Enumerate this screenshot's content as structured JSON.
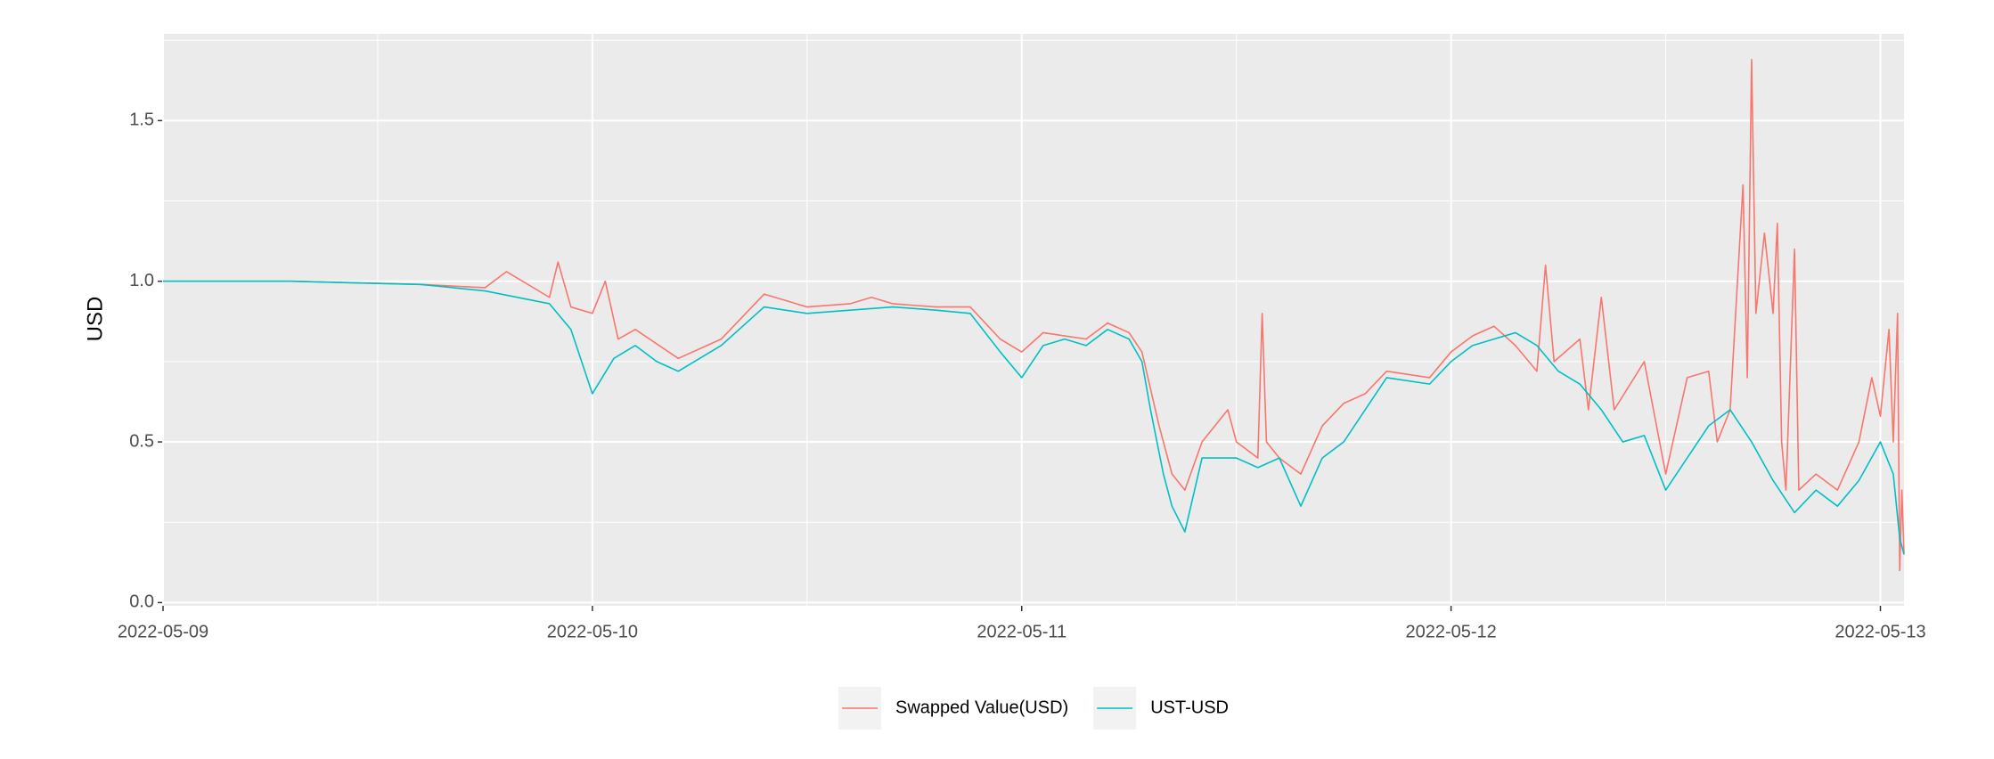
{
  "chart_data": {
    "type": "line",
    "y_label": "USD",
    "xlim": [
      0,
      4.055
    ],
    "xticks": [
      {
        "value": 0,
        "label": "2022-05-09"
      },
      {
        "value": 1,
        "label": "2022-05-10"
      },
      {
        "value": 2,
        "label": "2022-05-11"
      },
      {
        "value": 3,
        "label": "2022-05-12"
      },
      {
        "value": 4,
        "label": "2022-05-13"
      }
    ],
    "ylim": [
      -0.01,
      1.77
    ],
    "yticks": [
      {
        "value": 0,
        "label": "0.0"
      },
      0.5,
      {
        "value": 1,
        "label": "1.0"
      },
      1.5
    ],
    "grid": true,
    "legend": "bottom",
    "series": [
      {
        "name": "Swapped Value(USD)",
        "color": "#F8766D",
        "x": [
          0,
          0.3,
          0.6,
          0.75,
          0.8,
          0.9,
          0.92,
          0.95,
          1.0,
          1.03,
          1.06,
          1.1,
          1.2,
          1.3,
          1.4,
          1.5,
          1.6,
          1.65,
          1.7,
          1.8,
          1.88,
          1.95,
          2.0,
          2.05,
          2.1,
          2.15,
          2.2,
          2.25,
          2.28,
          2.32,
          2.35,
          2.38,
          2.42,
          2.48,
          2.5,
          2.55,
          2.56,
          2.57,
          2.6,
          2.65,
          2.7,
          2.75,
          2.8,
          2.85,
          2.95,
          3.0,
          3.05,
          3.1,
          3.15,
          3.2,
          3.22,
          3.24,
          3.3,
          3.32,
          3.35,
          3.38,
          3.45,
          3.5,
          3.55,
          3.6,
          3.62,
          3.65,
          3.68,
          3.69,
          3.7,
          3.71,
          3.73,
          3.75,
          3.76,
          3.77,
          3.78,
          3.8,
          3.81,
          3.85,
          3.9,
          3.95,
          3.98,
          4.0,
          4.02,
          4.03,
          4.04,
          4.045,
          4.05,
          4.055
        ],
        "values": [
          1.0,
          1.0,
          0.99,
          0.98,
          1.03,
          0.95,
          1.06,
          0.92,
          0.9,
          1.0,
          0.82,
          0.85,
          0.76,
          0.82,
          0.96,
          0.92,
          0.93,
          0.95,
          0.93,
          0.92,
          0.92,
          0.82,
          0.78,
          0.84,
          0.83,
          0.82,
          0.87,
          0.84,
          0.78,
          0.55,
          0.4,
          0.35,
          0.5,
          0.6,
          0.5,
          0.45,
          0.9,
          0.5,
          0.45,
          0.4,
          0.55,
          0.62,
          0.65,
          0.72,
          0.7,
          0.78,
          0.83,
          0.86,
          0.8,
          0.72,
          1.05,
          0.75,
          0.82,
          0.6,
          0.95,
          0.6,
          0.75,
          0.4,
          0.7,
          0.72,
          0.5,
          0.6,
          1.3,
          0.7,
          1.69,
          0.9,
          1.15,
          0.9,
          1.18,
          0.5,
          0.35,
          1.1,
          0.35,
          0.4,
          0.35,
          0.5,
          0.7,
          0.58,
          0.85,
          0.5,
          0.9,
          0.1,
          0.35,
          0.15
        ]
      },
      {
        "name": "UST-USD",
        "color": "#00BFC4",
        "x": [
          0,
          0.3,
          0.6,
          0.75,
          0.9,
          0.95,
          1.0,
          1.05,
          1.1,
          1.15,
          1.2,
          1.3,
          1.4,
          1.5,
          1.6,
          1.7,
          1.8,
          1.88,
          1.95,
          2.0,
          2.05,
          2.1,
          2.15,
          2.2,
          2.25,
          2.28,
          2.3,
          2.33,
          2.35,
          2.38,
          2.42,
          2.5,
          2.55,
          2.6,
          2.65,
          2.7,
          2.75,
          2.8,
          2.85,
          2.95,
          3.0,
          3.05,
          3.1,
          3.15,
          3.2,
          3.25,
          3.3,
          3.35,
          3.4,
          3.45,
          3.5,
          3.55,
          3.6,
          3.65,
          3.7,
          3.75,
          3.8,
          3.85,
          3.9,
          3.95,
          4.0,
          4.03,
          4.045,
          4.055
        ],
        "values": [
          1.0,
          1.0,
          0.99,
          0.97,
          0.93,
          0.85,
          0.65,
          0.76,
          0.8,
          0.75,
          0.72,
          0.8,
          0.92,
          0.9,
          0.91,
          0.92,
          0.91,
          0.9,
          0.78,
          0.7,
          0.8,
          0.82,
          0.8,
          0.85,
          0.82,
          0.75,
          0.6,
          0.4,
          0.3,
          0.22,
          0.45,
          0.45,
          0.42,
          0.45,
          0.3,
          0.45,
          0.5,
          0.6,
          0.7,
          0.68,
          0.75,
          0.8,
          0.82,
          0.84,
          0.8,
          0.72,
          0.68,
          0.6,
          0.5,
          0.52,
          0.35,
          0.45,
          0.55,
          0.6,
          0.5,
          0.38,
          0.28,
          0.35,
          0.3,
          0.38,
          0.5,
          0.4,
          0.2,
          0.15
        ]
      }
    ]
  }
}
